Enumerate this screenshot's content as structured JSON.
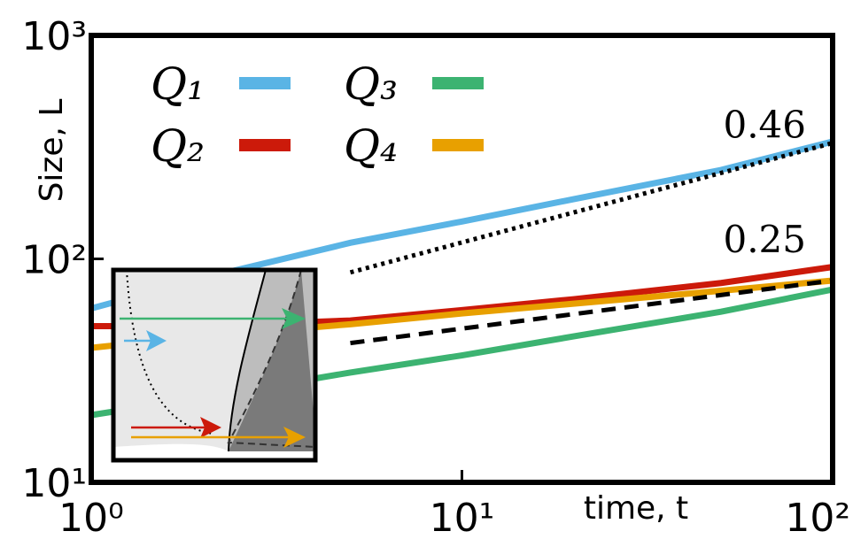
{
  "chart_data": {
    "type": "line",
    "ylabel": "Size, L",
    "xlabel": "time, t",
    "log_x": true,
    "log_y": true,
    "xlim": [
      1,
      100
    ],
    "ylim": [
      10,
      1000
    ],
    "xticks": [
      {
        "value": 1,
        "label": "10⁰"
      },
      {
        "value": 10,
        "label": "10¹"
      },
      {
        "value": 100,
        "label": "10²"
      }
    ],
    "yticks": [
      {
        "value": 10,
        "label": "10¹"
      },
      {
        "value": 100,
        "label": "10²"
      },
      {
        "value": 1000,
        "label": "10³"
      }
    ],
    "x": [
      1,
      2,
      5,
      10,
      20,
      50,
      100
    ],
    "series": [
      {
        "name": "Q₁",
        "color": "#5ab4e5",
        "values": [
          60,
          82,
          118,
          147,
          185,
          250,
          335
        ]
      },
      {
        "name": "Q₂",
        "color": "#cc1a0a",
        "values": [
          50,
          50,
          53,
          59,
          66,
          78,
          92
        ]
      },
      {
        "name": "Q₃",
        "color": "#3cb371",
        "values": [
          20,
          24,
          31,
          37,
          45,
          58,
          73
        ]
      },
      {
        "name": "Q₄",
        "color": "#e8a000",
        "values": [
          40,
          45,
          51,
          57,
          63,
          72,
          80
        ]
      }
    ],
    "reference_lines": [
      {
        "label": "0.46",
        "style": "dotted",
        "x": [
          5,
          100
        ],
        "values": [
          87,
          330
        ]
      },
      {
        "label": "0.25",
        "style": "dashed",
        "x": [
          5,
          100
        ],
        "values": [
          42,
          80
        ]
      }
    ]
  }
}
